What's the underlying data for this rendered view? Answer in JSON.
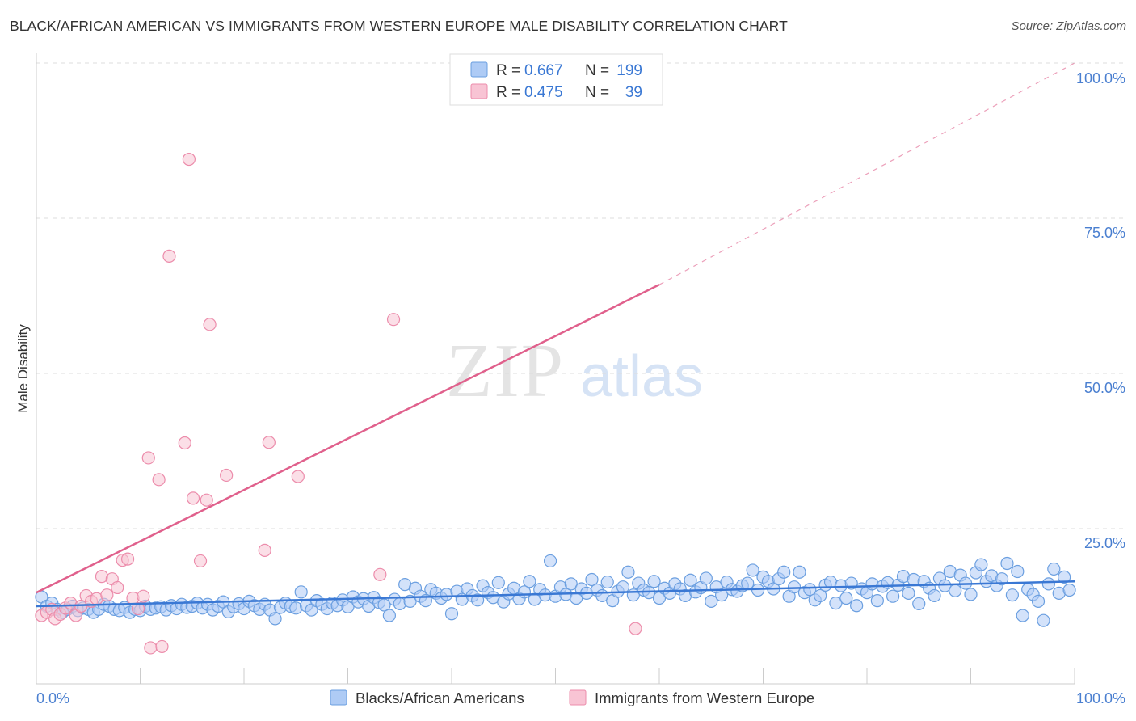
{
  "title": "BLACK/AFRICAN AMERICAN VS IMMIGRANTS FROM WESTERN EUROPE MALE DISABILITY CORRELATION CHART",
  "source": "Source: ZipAtlas.com",
  "watermark": {
    "zip": "ZIP",
    "atlas": "atlas"
  },
  "colors": {
    "blue_fill": "#aecbf5",
    "blue_stroke": "#6b9fe0",
    "blue_line": "#3a78d4",
    "pink_fill": "#f8c4d4",
    "pink_stroke": "#ec8cab",
    "pink_line": "#e0608c",
    "axis_label": "#4a7fd0",
    "grid": "#dddddd"
  },
  "stats": [
    {
      "swatch": "blue",
      "r_label": "R =",
      "r_value": "0.667",
      "n_label": "N =",
      "n_value": "199"
    },
    {
      "swatch": "pink",
      "r_label": "R =",
      "r_value": "0.475",
      "n_label": "N =",
      "n_value": "39"
    }
  ],
  "chart_data": {
    "type": "scatter",
    "xlabel": "",
    "ylabel": "Male Disability",
    "xlim": [
      0,
      100
    ],
    "ylim": [
      0,
      100
    ],
    "x_tick_labels": [
      "0.0%",
      "100.0%"
    ],
    "y_tick_labels": [
      {
        "value": 25,
        "label": "25.0%"
      },
      {
        "value": 50,
        "label": "50.0%"
      },
      {
        "value": 75,
        "label": "75.0%"
      },
      {
        "value": 100,
        "label": "100.0%"
      }
    ],
    "grid": true,
    "legend_position": "bottom",
    "series": [
      {
        "name": "Blacks/African Americans",
        "color": "blue",
        "trend": {
          "x0": 0,
          "y0": 12.5,
          "x1": 100,
          "y1": 16.5
        },
        "points": [
          [
            0.5,
            14
          ],
          [
            1,
            12.5
          ],
          [
            1.5,
            13
          ],
          [
            2,
            12
          ],
          [
            2.5,
            11.5
          ],
          [
            3,
            12
          ],
          [
            3.5,
            12.5
          ],
          [
            4,
            11.8
          ],
          [
            4.5,
            12.2
          ],
          [
            5,
            12
          ],
          [
            5.5,
            11.5
          ],
          [
            6,
            12
          ],
          [
            6.5,
            12.8
          ],
          [
            7,
            12.5
          ],
          [
            7.5,
            12
          ],
          [
            8,
            11.8
          ],
          [
            8.5,
            12.3
          ],
          [
            9,
            11.5
          ],
          [
            9.5,
            12
          ],
          [
            10,
            11.8
          ],
          [
            10.5,
            12.5
          ],
          [
            11,
            12
          ],
          [
            11.5,
            12.2
          ],
          [
            12,
            12.4
          ],
          [
            12.5,
            11.9
          ],
          [
            13,
            12.6
          ],
          [
            13.5,
            12.1
          ],
          [
            14,
            12.8
          ],
          [
            14.5,
            12.3
          ],
          [
            15,
            12.5
          ],
          [
            15.5,
            13
          ],
          [
            16,
            12.2
          ],
          [
            16.5,
            12.8
          ],
          [
            17,
            11.9
          ],
          [
            17.5,
            12.5
          ],
          [
            18,
            13.2
          ],
          [
            18.5,
            11.6
          ],
          [
            19,
            12.4
          ],
          [
            19.5,
            12.9
          ],
          [
            20,
            12.1
          ],
          [
            20.5,
            13.3
          ],
          [
            21,
            12.6
          ],
          [
            21.5,
            12
          ],
          [
            22,
            12.8
          ],
          [
            22.5,
            11.9
          ],
          [
            23,
            10.5
          ],
          [
            23.5,
            12.3
          ],
          [
            24,
            13
          ],
          [
            24.5,
            12.5
          ],
          [
            25,
            12.2
          ],
          [
            25.5,
            14.8
          ],
          [
            26,
            12.6
          ],
          [
            26.5,
            11.9
          ],
          [
            27,
            13.4
          ],
          [
            27.5,
            12.8
          ],
          [
            28,
            12.1
          ],
          [
            28.5,
            13
          ],
          [
            29,
            12.6
          ],
          [
            29.5,
            13.5
          ],
          [
            30,
            12.4
          ],
          [
            30.5,
            14
          ],
          [
            31,
            13.2
          ],
          [
            31.5,
            13.7
          ],
          [
            32,
            12.5
          ],
          [
            32.5,
            13.9
          ],
          [
            33,
            13.1
          ],
          [
            33.5,
            12.7
          ],
          [
            34,
            11
          ],
          [
            34.5,
            13.6
          ],
          [
            35,
            12.9
          ],
          [
            35.5,
            16
          ],
          [
            36,
            13.3
          ],
          [
            36.5,
            15.4
          ],
          [
            37,
            14.1
          ],
          [
            37.5,
            13.4
          ],
          [
            38,
            15.2
          ],
          [
            38.5,
            14.6
          ],
          [
            39,
            13.8
          ],
          [
            39.5,
            14.4
          ],
          [
            40,
            11.3
          ],
          [
            40.5,
            14.9
          ],
          [
            41,
            13.6
          ],
          [
            41.5,
            15.3
          ],
          [
            42,
            14.2
          ],
          [
            42.5,
            13.5
          ],
          [
            43,
            15.8
          ],
          [
            43.5,
            14.7
          ],
          [
            44,
            13.9
          ],
          [
            44.5,
            16.3
          ],
          [
            45,
            13.2
          ],
          [
            45.5,
            14.5
          ],
          [
            46,
            15.4
          ],
          [
            46.5,
            13.7
          ],
          [
            47,
            14.8
          ],
          [
            47.5,
            16.5
          ],
          [
            48,
            13.6
          ],
          [
            48.5,
            15.2
          ],
          [
            49,
            14.3
          ],
          [
            49.5,
            19.8
          ],
          [
            50,
            14.1
          ],
          [
            50.5,
            15.6
          ],
          [
            51,
            14.4
          ],
          [
            51.5,
            16.1
          ],
          [
            52,
            13.8
          ],
          [
            52.5,
            15.3
          ],
          [
            53,
            14.6
          ],
          [
            53.5,
            16.8
          ],
          [
            54,
            15.1
          ],
          [
            54.5,
            14.2
          ],
          [
            55,
            16.4
          ],
          [
            55.5,
            13.4
          ],
          [
            56,
            14.9
          ],
          [
            56.5,
            15.6
          ],
          [
            57,
            18
          ],
          [
            57.5,
            14.3
          ],
          [
            58,
            16.2
          ],
          [
            58.5,
            15.1
          ],
          [
            59,
            14.7
          ],
          [
            59.5,
            16.5
          ],
          [
            60,
            13.8
          ],
          [
            60.5,
            15.4
          ],
          [
            61,
            14.6
          ],
          [
            61.5,
            16.1
          ],
          [
            62,
            15.3
          ],
          [
            62.5,
            14.2
          ],
          [
            63,
            16.7
          ],
          [
            63.5,
            14.8
          ],
          [
            64,
            15.5
          ],
          [
            64.5,
            17
          ],
          [
            65,
            13.3
          ],
          [
            65.5,
            15.6
          ],
          [
            66,
            14.3
          ],
          [
            66.5,
            16.4
          ],
          [
            67,
            15.2
          ],
          [
            67.5,
            14.9
          ],
          [
            68,
            15.8
          ],
          [
            68.5,
            16.2
          ],
          [
            69,
            18.3
          ],
          [
            69.5,
            15.1
          ],
          [
            70,
            17.2
          ],
          [
            70.5,
            16.5
          ],
          [
            71,
            15.3
          ],
          [
            71.5,
            16.9
          ],
          [
            72,
            18
          ],
          [
            72.5,
            14.1
          ],
          [
            73,
            15.6
          ],
          [
            73.5,
            18
          ],
          [
            74,
            14.7
          ],
          [
            74.5,
            15.2
          ],
          [
            75,
            13.5
          ],
          [
            75.5,
            14.2
          ],
          [
            76,
            15.9
          ],
          [
            76.5,
            16.4
          ],
          [
            77,
            13
          ],
          [
            77.5,
            15.8
          ],
          [
            78,
            13.8
          ],
          [
            78.5,
            16.2
          ],
          [
            79,
            12.6
          ],
          [
            79.5,
            15.3
          ],
          [
            80,
            14.7
          ],
          [
            80.5,
            16.1
          ],
          [
            81,
            13.4
          ],
          [
            81.5,
            15.7
          ],
          [
            82,
            16.3
          ],
          [
            82.5,
            14.1
          ],
          [
            83,
            15.9
          ],
          [
            83.5,
            17.3
          ],
          [
            84,
            14.6
          ],
          [
            84.5,
            16.8
          ],
          [
            85,
            12.9
          ],
          [
            85.5,
            16.5
          ],
          [
            86,
            15.4
          ],
          [
            86.5,
            14.2
          ],
          [
            87,
            17
          ],
          [
            87.5,
            15.8
          ],
          [
            88,
            18.1
          ],
          [
            88.5,
            15
          ],
          [
            89,
            17.5
          ],
          [
            89.5,
            16.2
          ],
          [
            90,
            14.4
          ],
          [
            90.5,
            17.9
          ],
          [
            91,
            19.2
          ],
          [
            91.5,
            16.5
          ],
          [
            92,
            17.4
          ],
          [
            92.5,
            15.8
          ],
          [
            93,
            16.9
          ],
          [
            93.5,
            19.4
          ],
          [
            94,
            14.3
          ],
          [
            94.5,
            18.1
          ],
          [
            95,
            11
          ],
          [
            95.5,
            15.2
          ],
          [
            96,
            14.4
          ],
          [
            96.5,
            13.3
          ],
          [
            97,
            10.2
          ],
          [
            97.5,
            16.1
          ],
          [
            98,
            18.5
          ],
          [
            98.5,
            14.6
          ],
          [
            99,
            17.2
          ],
          [
            99.5,
            15.1
          ]
        ]
      },
      {
        "name": "Immigrants from Western Europe",
        "color": "pink",
        "trend": {
          "x0": 0,
          "y0": 14.7,
          "x1": 60,
          "y1": 64.3,
          "dash_x1": 100,
          "dash_y1": 100
        },
        "points": [
          [
            0.5,
            11
          ],
          [
            1,
            11.5
          ],
          [
            1.5,
            12
          ],
          [
            1.8,
            10.5
          ],
          [
            2.3,
            11.2
          ],
          [
            2.8,
            12.2
          ],
          [
            3.3,
            13
          ],
          [
            3.8,
            11
          ],
          [
            4.3,
            12.5
          ],
          [
            4.8,
            14.2
          ],
          [
            5.3,
            13.3
          ],
          [
            5.8,
            13.7
          ],
          [
            6.3,
            17.3
          ],
          [
            6.8,
            14.3
          ],
          [
            7.3,
            16.9
          ],
          [
            7.8,
            15.5
          ],
          [
            8.3,
            19.9
          ],
          [
            8.8,
            20.1
          ],
          [
            9.3,
            13.8
          ],
          [
            9.8,
            12.1
          ],
          [
            10.3,
            14.1
          ],
          [
            10.8,
            36.4
          ],
          [
            11,
            5.8
          ],
          [
            11.8,
            32.9
          ],
          [
            12.1,
            6
          ],
          [
            12.8,
            68.9
          ],
          [
            14.3,
            38.8
          ],
          [
            14.7,
            84.5
          ],
          [
            15.1,
            29.9
          ],
          [
            15.8,
            19.8
          ],
          [
            16.4,
            29.6
          ],
          [
            16.7,
            57.9
          ],
          [
            18.3,
            33.6
          ],
          [
            22,
            21.5
          ],
          [
            22.4,
            38.9
          ],
          [
            25.2,
            33.4
          ],
          [
            33.1,
            17.6
          ],
          [
            34.4,
            58.7
          ],
          [
            57.7,
            8.9
          ]
        ]
      }
    ]
  }
}
